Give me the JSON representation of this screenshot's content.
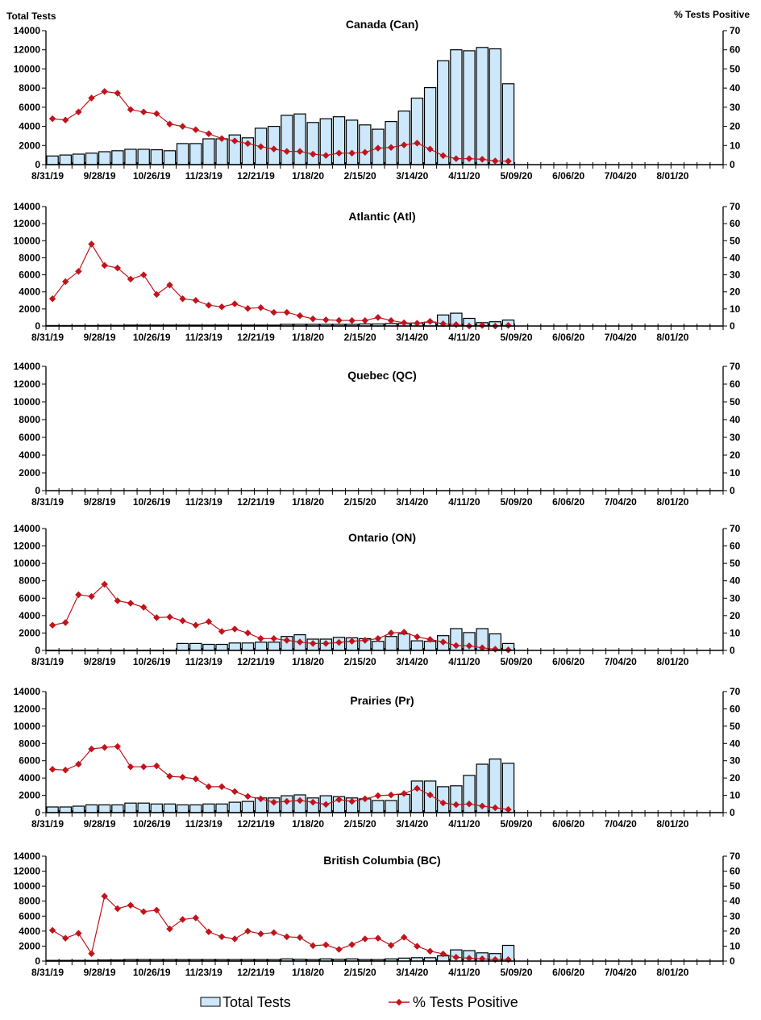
{
  "chart_data": {
    "type": "bar",
    "combo": "bar+line (dual axis)",
    "left_axis_title": "Total Tests",
    "right_axis_title": "% Tests Positive",
    "left_ylim": [
      0,
      14000
    ],
    "left_yticks": [
      0,
      2000,
      4000,
      6000,
      8000,
      10000,
      12000,
      14000
    ],
    "right_ylim": [
      0,
      70
    ],
    "right_yticks": [
      0,
      10,
      20,
      30,
      40,
      50,
      60,
      70
    ],
    "x_tick_labels": [
      "8/31/19",
      "9/28/19",
      "10/26/19",
      "11/23/19",
      "12/21/19",
      "1/18/20",
      "2/15/20",
      "3/14/20",
      "4/11/20",
      "5/09/20",
      "6/06/20",
      "7/04/20",
      "8/01/20"
    ],
    "weeks_on_axis": 52,
    "legend": {
      "position": "bottom",
      "entries": [
        "Total Tests",
        "% Tests Positive"
      ]
    },
    "colors": {
      "bar_fill": "#cce8fa",
      "bar_stroke": "#000000",
      "line": "#c0141c"
    },
    "panels": [
      {
        "title": "Canada (Can)",
        "total_tests": [
          900,
          1000,
          1100,
          1200,
          1350,
          1450,
          1600,
          1600,
          1550,
          1450,
          2200,
          2200,
          2700,
          2700,
          3100,
          2800,
          3800,
          4000,
          5150,
          5300,
          4400,
          4800,
          5000,
          4650,
          4150,
          3700,
          4500,
          5600,
          6950,
          8050,
          10850,
          12000,
          11900,
          12250,
          12100,
          8450
        ],
        "pct_positive": [
          24,
          23.3,
          27.5,
          34.8,
          38.2,
          37.3,
          28.8,
          27.5,
          26.6,
          21.2,
          20,
          18.2,
          16.1,
          13.6,
          12.4,
          11,
          9.4,
          8.2,
          6.9,
          6.9,
          5.5,
          4.8,
          6,
          6,
          6.4,
          8.6,
          9,
          10.3,
          11.2,
          8.1,
          4.7,
          3.1,
          3.1,
          2.8,
          1.9,
          1.8
        ]
      },
      {
        "title": "Atlantic (Atl)",
        "total_tests": [
          60,
          60,
          60,
          60,
          80,
          80,
          100,
          100,
          100,
          100,
          100,
          100,
          100,
          100,
          100,
          100,
          100,
          100,
          200,
          200,
          200,
          200,
          200,
          200,
          250,
          250,
          300,
          300,
          350,
          450,
          1300,
          1500,
          900,
          400,
          500,
          700
        ],
        "pct_positive": [
          16,
          26,
          32,
          48,
          35.5,
          34,
          27.5,
          30,
          18.5,
          24,
          16,
          15,
          12.2,
          11.2,
          13,
          10.3,
          10.8,
          8,
          8,
          6,
          4.2,
          3.6,
          3.3,
          3.2,
          3.2,
          5,
          3.2,
          1.9,
          1.6,
          2.7,
          1.3,
          0.8,
          0,
          0.4,
          0,
          0.4
        ]
      },
      {
        "title": "Quebec (QC)",
        "total_tests": [],
        "pct_positive": []
      },
      {
        "title": "Ontario (ON)",
        "total_tests": [
          0,
          0,
          0,
          0,
          0,
          0,
          0,
          0,
          0,
          0,
          800,
          800,
          700,
          700,
          850,
          850,
          950,
          950,
          1600,
          1800,
          1300,
          1300,
          1500,
          1450,
          1350,
          1050,
          1600,
          1900,
          1100,
          1050,
          1700,
          2500,
          2050,
          2500,
          1900,
          800
        ],
        "pct_positive": [
          14.5,
          16,
          32,
          31,
          38,
          28.5,
          27.1,
          24.8,
          18.8,
          19.2,
          17,
          14.5,
          16.5,
          10.9,
          12.3,
          10,
          6.8,
          6.8,
          5.8,
          4.8,
          4,
          4,
          4.6,
          5.3,
          5.8,
          6.8,
          10,
          10.5,
          7.8,
          6.3,
          4.8,
          2.8,
          2.6,
          1.5,
          0.7,
          0.3
        ]
      },
      {
        "title": "Prairies (Pr)",
        "total_tests": [
          650,
          650,
          750,
          900,
          900,
          900,
          1100,
          1100,
          1000,
          1000,
          900,
          900,
          1000,
          1000,
          1200,
          1300,
          1700,
          1700,
          1950,
          2050,
          1700,
          1950,
          1850,
          1700,
          1600,
          1400,
          1400,
          2100,
          3650,
          3650,
          3000,
          3100,
          4300,
          5600,
          6200,
          5700
        ],
        "pct_positive": [
          25,
          24.6,
          28,
          36.8,
          37.7,
          38.2,
          26.5,
          26.5,
          27,
          21,
          20.5,
          19.5,
          15,
          15,
          12.2,
          9.4,
          8,
          6,
          6.5,
          7,
          6,
          4.7,
          7.5,
          6.5,
          8,
          9.8,
          10.2,
          11,
          14,
          10.2,
          5.6,
          4.6,
          5,
          3.8,
          2.8,
          1.8
        ]
      },
      {
        "title": "British Columbia (BC)",
        "total_tests": [
          100,
          100,
          100,
          100,
          150,
          150,
          200,
          200,
          200,
          200,
          200,
          200,
          200,
          200,
          200,
          200,
          200,
          200,
          300,
          250,
          200,
          300,
          250,
          300,
          200,
          200,
          300,
          400,
          450,
          450,
          700,
          1500,
          1400,
          1100,
          1000,
          2100
        ],
        "pct_positive": [
          20.5,
          15.3,
          18.5,
          5,
          43.3,
          35,
          37.3,
          33,
          34,
          21.5,
          27.8,
          28.8,
          19.5,
          16.2,
          14.8,
          20,
          18.2,
          19,
          16.2,
          15.8,
          10.3,
          10.8,
          7.8,
          11,
          14.8,
          15.3,
          10.5,
          15.9,
          9.9,
          6.6,
          4.8,
          2.6,
          1.9,
          1.5,
          1,
          1
        ]
      }
    ]
  }
}
